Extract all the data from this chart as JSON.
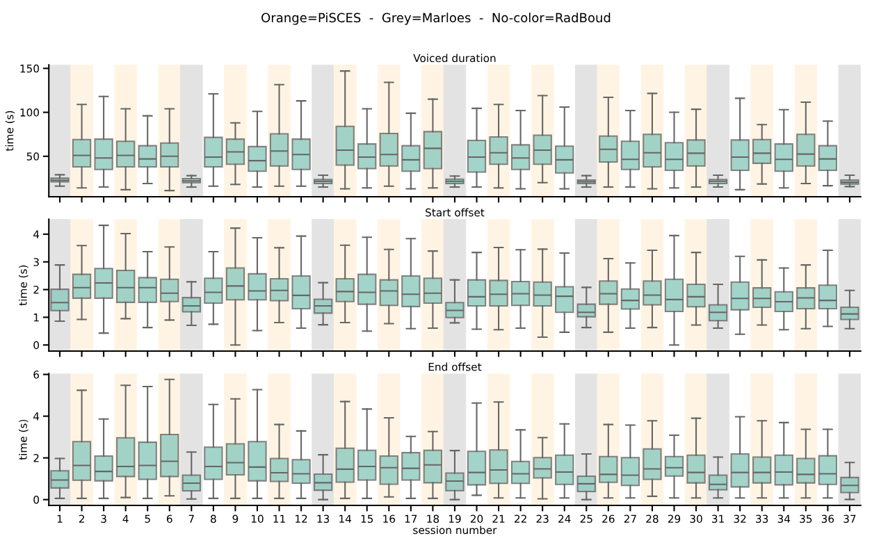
{
  "chart_data": [
    {
      "type": "box",
      "title": "Voiced duration",
      "ylabel": "time (s)",
      "annotations": [
        "Orange=PiSCES  -  Grey=Marloes  -  No-color=RadBoud"
      ],
      "categories": [
        "1",
        "2",
        "3",
        "4",
        "5",
        "6",
        "7",
        "8",
        "9",
        "10",
        "11",
        "12",
        "13",
        "14",
        "15",
        "16",
        "17",
        "18",
        "19",
        "20",
        "21",
        "22",
        "23",
        "24",
        "25",
        "26",
        "27",
        "28",
        "29",
        "30",
        "31",
        "32",
        "33",
        "34",
        "35",
        "36",
        "37"
      ],
      "color": "#8ecbbf",
      "ylim": [
        4,
        154
      ],
      "yticks": [
        50,
        100,
        150
      ],
      "tick_labels": "y",
      "grid": false,
      "boxes": [
        {
          "low": 16,
          "q1": 21,
          "median": 22.5,
          "q3": 25,
          "high": 29
        },
        {
          "low": 14,
          "q1": 38,
          "median": 51,
          "q3": 69,
          "high": 109
        },
        {
          "low": 15,
          "q1": 35,
          "median": 48,
          "q3": 69.5,
          "high": 118
        },
        {
          "low": 12,
          "q1": 38,
          "median": 51,
          "q3": 67,
          "high": 104
        },
        {
          "low": 19,
          "q1": 38,
          "median": 47,
          "q3": 62,
          "high": 96
        },
        {
          "low": 11,
          "q1": 38,
          "median": 50,
          "q3": 65,
          "high": 104
        },
        {
          "low": 15,
          "q1": 20,
          "median": 22,
          "q3": 24.5,
          "high": 28
        },
        {
          "low": 16,
          "q1": 38,
          "median": 49,
          "q3": 71.5,
          "high": 121
        },
        {
          "low": 18,
          "q1": 41,
          "median": 55,
          "q3": 69.5,
          "high": 88
        },
        {
          "low": 15,
          "q1": 33,
          "median": 45,
          "q3": 61,
          "high": 101
        },
        {
          "low": 16,
          "q1": 39,
          "median": 56,
          "q3": 75.5,
          "high": 131.5
        },
        {
          "low": 16,
          "q1": 35,
          "median": 52,
          "q3": 69.5,
          "high": 113
        },
        {
          "low": 15,
          "q1": 19,
          "median": 21.5,
          "q3": 23.5,
          "high": 28.5
        },
        {
          "low": 13,
          "q1": 40,
          "median": 57,
          "q3": 84,
          "high": 147
        },
        {
          "low": 14,
          "q1": 36,
          "median": 49,
          "q3": 64,
          "high": 104
        },
        {
          "low": 16,
          "q1": 39,
          "median": 52,
          "q3": 76,
          "high": 134
        },
        {
          "low": 13,
          "q1": 33,
          "median": 46,
          "q3": 62,
          "high": 99
        },
        {
          "low": 14,
          "q1": 36,
          "median": 59,
          "q3": 78,
          "high": 115
        },
        {
          "low": 15,
          "q1": 19,
          "median": 21.5,
          "q3": 24,
          "high": 27.5
        },
        {
          "low": 15,
          "q1": 32,
          "median": 49,
          "q3": 68,
          "high": 104.5
        },
        {
          "low": 14,
          "q1": 41,
          "median": 54,
          "q3": 72,
          "high": 109
        },
        {
          "low": 13,
          "q1": 35,
          "median": 48,
          "q3": 63,
          "high": 102
        },
        {
          "low": 20,
          "q1": 41,
          "median": 57,
          "q3": 74,
          "high": 119
        },
        {
          "low": 13,
          "q1": 31,
          "median": 46,
          "q3": 61.5,
          "high": 106
        },
        {
          "low": 15,
          "q1": 19,
          "median": 21,
          "q3": 23,
          "high": 28
        },
        {
          "low": 15,
          "q1": 43.5,
          "median": 58,
          "q3": 73,
          "high": 117
        },
        {
          "low": 15,
          "q1": 35,
          "median": 46.5,
          "q3": 67,
          "high": 102
        },
        {
          "low": 13,
          "q1": 38,
          "median": 54,
          "q3": 75,
          "high": 121.5
        },
        {
          "low": 14,
          "q1": 34,
          "median": 46.5,
          "q3": 65.5,
          "high": 100
        },
        {
          "low": 15,
          "q1": 39,
          "median": 53.5,
          "q3": 68.5,
          "high": 103.5
        },
        {
          "low": 15,
          "q1": 19,
          "median": 21.5,
          "q3": 23.5,
          "high": 28.5
        },
        {
          "low": 12,
          "q1": 34,
          "median": 49,
          "q3": 68.5,
          "high": 116
        },
        {
          "low": 18.5,
          "q1": 42,
          "median": 53.5,
          "q3": 69,
          "high": 86
        },
        {
          "low": 14,
          "q1": 33,
          "median": 46.5,
          "q3": 64,
          "high": 103
        },
        {
          "low": 19,
          "q1": 39,
          "median": 52.5,
          "q3": 75,
          "high": 111.5
        },
        {
          "low": 16.5,
          "q1": 34,
          "median": 47,
          "q3": 62,
          "high": 90
        },
        {
          "low": 15.5,
          "q1": 18.5,
          "median": 20.5,
          "q3": 23,
          "high": 28.5
        }
      ],
      "bands": [
        {
          "axis": "x",
          "from": "1",
          "to": "1",
          "color": "#e3e3e3"
        },
        {
          "axis": "x",
          "from": "2",
          "to": "2",
          "color": "#fff4e3"
        },
        {
          "axis": "x",
          "from": "4",
          "to": "4",
          "color": "#fff4e3"
        },
        {
          "axis": "x",
          "from": "6",
          "to": "6",
          "color": "#fff4e3"
        },
        {
          "axis": "x",
          "from": "7",
          "to": "7",
          "color": "#e3e3e3"
        },
        {
          "axis": "x",
          "from": "9",
          "to": "9",
          "color": "#fff4e3"
        },
        {
          "axis": "x",
          "from": "11",
          "to": "11",
          "color": "#fff4e3"
        },
        {
          "axis": "x",
          "from": "13",
          "to": "13",
          "color": "#e3e3e3"
        },
        {
          "axis": "x",
          "from": "14",
          "to": "14",
          "color": "#fff4e3"
        },
        {
          "axis": "x",
          "from": "16",
          "to": "16",
          "color": "#fff4e3"
        },
        {
          "axis": "x",
          "from": "18",
          "to": "18",
          "color": "#fff4e3"
        },
        {
          "axis": "x",
          "from": "19",
          "to": "19",
          "color": "#e3e3e3"
        },
        {
          "axis": "x",
          "from": "21",
          "to": "21",
          "color": "#fff4e3"
        },
        {
          "axis": "x",
          "from": "23",
          "to": "23",
          "color": "#fff4e3"
        },
        {
          "axis": "x",
          "from": "25",
          "to": "25",
          "color": "#e3e3e3"
        },
        {
          "axis": "x",
          "from": "26",
          "to": "26",
          "color": "#fff4e3"
        },
        {
          "axis": "x",
          "from": "28",
          "to": "28",
          "color": "#fff4e3"
        },
        {
          "axis": "x",
          "from": "30",
          "to": "30",
          "color": "#fff4e3"
        },
        {
          "axis": "x",
          "from": "31",
          "to": "31",
          "color": "#e3e3e3"
        },
        {
          "axis": "x",
          "from": "33",
          "to": "33",
          "color": "#fff4e3"
        },
        {
          "axis": "x",
          "from": "35",
          "to": "35",
          "color": "#fff4e3"
        },
        {
          "axis": "x",
          "from": "37",
          "to": "37",
          "color": "#e3e3e3"
        }
      ]
    },
    {
      "type": "box",
      "title": "Start offset",
      "ylabel": "time (s)",
      "categories": [
        "1",
        "2",
        "3",
        "4",
        "5",
        "6",
        "7",
        "8",
        "9",
        "10",
        "11",
        "12",
        "13",
        "14",
        "15",
        "16",
        "17",
        "18",
        "19",
        "20",
        "21",
        "22",
        "23",
        "24",
        "25",
        "26",
        "27",
        "28",
        "29",
        "30",
        "31",
        "32",
        "33",
        "34",
        "35",
        "36",
        "37"
      ],
      "color": "#8ecbbf",
      "ylim": [
        -0.22,
        4.54
      ],
      "yticks": [
        0,
        1,
        2,
        3,
        4
      ],
      "tick_labels": "y",
      "grid": false,
      "boxes": [
        {
          "low": 0.86,
          "q1": 1.24,
          "median": 1.53,
          "q3": 2.01,
          "high": 2.89
        },
        {
          "low": 0.92,
          "q1": 1.69,
          "median": 2.07,
          "q3": 2.55,
          "high": 3.59
        },
        {
          "low": 0.43,
          "q1": 1.69,
          "median": 2.24,
          "q3": 2.76,
          "high": 4.32
        },
        {
          "low": 0.95,
          "q1": 1.54,
          "median": 2.07,
          "q3": 2.69,
          "high": 4.02
        },
        {
          "low": 0.63,
          "q1": 1.54,
          "median": 2.07,
          "q3": 2.43,
          "high": 3.37
        },
        {
          "low": 0.9,
          "q1": 1.57,
          "median": 1.87,
          "q3": 2.37,
          "high": 3.54
        },
        {
          "low": 0.71,
          "q1": 1.2,
          "median": 1.41,
          "q3": 1.71,
          "high": 2.28
        },
        {
          "low": 0.75,
          "q1": 1.51,
          "median": 1.9,
          "q3": 2.41,
          "high": 3.37
        },
        {
          "low": 0.0,
          "q1": 1.63,
          "median": 2.13,
          "q3": 2.78,
          "high": 4.22
        },
        {
          "low": 0.52,
          "q1": 1.63,
          "median": 1.95,
          "q3": 2.57,
          "high": 3.87
        },
        {
          "low": 0.81,
          "q1": 1.6,
          "median": 1.97,
          "q3": 2.39,
          "high": 3.51
        },
        {
          "low": 0.61,
          "q1": 1.31,
          "median": 1.79,
          "q3": 2.49,
          "high": 3.93
        },
        {
          "low": 0.73,
          "q1": 1.15,
          "median": 1.41,
          "q3": 1.65,
          "high": 2.25
        },
        {
          "low": 0.81,
          "q1": 1.57,
          "median": 1.93,
          "q3": 2.39,
          "high": 3.6
        },
        {
          "low": 0.5,
          "q1": 1.47,
          "median": 1.9,
          "q3": 2.55,
          "high": 3.89
        },
        {
          "low": 0.77,
          "q1": 1.43,
          "median": 1.95,
          "q3": 2.35,
          "high": 3.45
        },
        {
          "low": 0.59,
          "q1": 1.39,
          "median": 1.83,
          "q3": 2.49,
          "high": 3.84
        },
        {
          "low": 0.61,
          "q1": 1.51,
          "median": 1.87,
          "q3": 2.41,
          "high": 3.39
        },
        {
          "low": 0.8,
          "q1": 0.99,
          "median": 1.25,
          "q3": 1.53,
          "high": 2.35
        },
        {
          "low": 0.57,
          "q1": 1.41,
          "median": 1.74,
          "q3": 2.35,
          "high": 3.34
        },
        {
          "low": 0.55,
          "q1": 1.41,
          "median": 1.83,
          "q3": 2.33,
          "high": 3.52
        },
        {
          "low": 0.61,
          "q1": 1.43,
          "median": 1.85,
          "q3": 2.29,
          "high": 3.44
        },
        {
          "low": 0.28,
          "q1": 1.41,
          "median": 1.8,
          "q3": 2.27,
          "high": 3.46
        },
        {
          "low": 0.46,
          "q1": 1.18,
          "median": 1.76,
          "q3": 2.1,
          "high": 3.32
        },
        {
          "low": 0.63,
          "q1": 1.02,
          "median": 1.18,
          "q3": 1.47,
          "high": 2.08
        },
        {
          "low": 0.46,
          "q1": 1.47,
          "median": 1.85,
          "q3": 2.31,
          "high": 3.12
        },
        {
          "low": 0.61,
          "q1": 1.3,
          "median": 1.61,
          "q3": 2.02,
          "high": 2.96
        },
        {
          "low": 0.63,
          "q1": 1.45,
          "median": 1.8,
          "q3": 2.31,
          "high": 3.42
        },
        {
          "low": 0.0,
          "q1": 1.21,
          "median": 1.64,
          "q3": 2.37,
          "high": 3.95
        },
        {
          "low": 0.72,
          "q1": 1.38,
          "median": 1.74,
          "q3": 2.19,
          "high": 3.34
        },
        {
          "low": 0.61,
          "q1": 0.88,
          "median": 1.18,
          "q3": 1.45,
          "high": 2.19
        },
        {
          "low": 0.39,
          "q1": 1.27,
          "median": 1.68,
          "q3": 2.27,
          "high": 3.2
        },
        {
          "low": 0.72,
          "q1": 1.36,
          "median": 1.68,
          "q3": 2.06,
          "high": 3.07
        },
        {
          "low": 0.55,
          "q1": 1.21,
          "median": 1.56,
          "q3": 1.92,
          "high": 2.78
        },
        {
          "low": 0.59,
          "q1": 1.31,
          "median": 1.7,
          "q3": 2.06,
          "high": 2.89
        },
        {
          "low": 0.67,
          "q1": 1.31,
          "median": 1.61,
          "q3": 2.16,
          "high": 3.42
        },
        {
          "low": 0.59,
          "q1": 0.92,
          "median": 1.12,
          "q3": 1.36,
          "high": 1.97
        }
      ],
      "bands": [
        {
          "axis": "x",
          "from": "1",
          "to": "1",
          "color": "#e3e3e3"
        },
        {
          "axis": "x",
          "from": "2",
          "to": "2",
          "color": "#fff4e3"
        },
        {
          "axis": "x",
          "from": "4",
          "to": "4",
          "color": "#fff4e3"
        },
        {
          "axis": "x",
          "from": "6",
          "to": "6",
          "color": "#fff4e3"
        },
        {
          "axis": "x",
          "from": "7",
          "to": "7",
          "color": "#e3e3e3"
        },
        {
          "axis": "x",
          "from": "9",
          "to": "9",
          "color": "#fff4e3"
        },
        {
          "axis": "x",
          "from": "11",
          "to": "11",
          "color": "#fff4e3"
        },
        {
          "axis": "x",
          "from": "13",
          "to": "13",
          "color": "#e3e3e3"
        },
        {
          "axis": "x",
          "from": "14",
          "to": "14",
          "color": "#fff4e3"
        },
        {
          "axis": "x",
          "from": "16",
          "to": "16",
          "color": "#fff4e3"
        },
        {
          "axis": "x",
          "from": "18",
          "to": "18",
          "color": "#fff4e3"
        },
        {
          "axis": "x",
          "from": "19",
          "to": "19",
          "color": "#e3e3e3"
        },
        {
          "axis": "x",
          "from": "21",
          "to": "21",
          "color": "#fff4e3"
        },
        {
          "axis": "x",
          "from": "23",
          "to": "23",
          "color": "#fff4e3"
        },
        {
          "axis": "x",
          "from": "25",
          "to": "25",
          "color": "#e3e3e3"
        },
        {
          "axis": "x",
          "from": "26",
          "to": "26",
          "color": "#fff4e3"
        },
        {
          "axis": "x",
          "from": "28",
          "to": "28",
          "color": "#fff4e3"
        },
        {
          "axis": "x",
          "from": "30",
          "to": "30",
          "color": "#fff4e3"
        },
        {
          "axis": "x",
          "from": "31",
          "to": "31",
          "color": "#e3e3e3"
        },
        {
          "axis": "x",
          "from": "33",
          "to": "33",
          "color": "#fff4e3"
        },
        {
          "axis": "x",
          "from": "35",
          "to": "35",
          "color": "#fff4e3"
        },
        {
          "axis": "x",
          "from": "37",
          "to": "37",
          "color": "#e3e3e3"
        }
      ]
    },
    {
      "type": "box",
      "title": "End offset",
      "ylabel": "time (s)",
      "xlabel": "session number",
      "categories": [
        "1",
        "2",
        "3",
        "4",
        "5",
        "6",
        "7",
        "8",
        "9",
        "10",
        "11",
        "12",
        "13",
        "14",
        "15",
        "16",
        "17",
        "18",
        "19",
        "20",
        "21",
        "22",
        "23",
        "24",
        "25",
        "26",
        "27",
        "28",
        "29",
        "30",
        "31",
        "32",
        "33",
        "34",
        "35",
        "36",
        "37"
      ],
      "color": "#8ecbbf",
      "ylim": [
        -0.28,
        6.04
      ],
      "yticks": [
        0,
        2,
        4,
        6
      ],
      "grid": false,
      "boxes": [
        {
          "low": 0.06,
          "q1": 0.56,
          "median": 0.94,
          "q3": 1.38,
          "high": 1.97
        },
        {
          "low": 0.06,
          "q1": 0.93,
          "median": 1.64,
          "q3": 2.78,
          "high": 5.24
        },
        {
          "low": 0.06,
          "q1": 0.9,
          "median": 1.35,
          "q3": 2.09,
          "high": 3.86
        },
        {
          "low": 0.1,
          "q1": 1.11,
          "median": 1.59,
          "q3": 2.96,
          "high": 5.48
        },
        {
          "low": 0.06,
          "q1": 0.97,
          "median": 1.64,
          "q3": 2.75,
          "high": 5.42
        },
        {
          "low": 0.18,
          "q1": 1.11,
          "median": 1.84,
          "q3": 3.12,
          "high": 5.76
        },
        {
          "low": 0.03,
          "q1": 0.42,
          "median": 0.79,
          "q3": 1.17,
          "high": 2.28
        },
        {
          "low": 0.06,
          "q1": 0.97,
          "median": 1.59,
          "q3": 2.51,
          "high": 4.56
        },
        {
          "low": 0.06,
          "q1": 1.19,
          "median": 1.77,
          "q3": 2.67,
          "high": 4.83
        },
        {
          "low": 0.06,
          "q1": 0.9,
          "median": 1.56,
          "q3": 2.78,
          "high": 5.27
        },
        {
          "low": 0.06,
          "q1": 0.87,
          "median": 1.29,
          "q3": 1.97,
          "high": 3.6
        },
        {
          "low": 0.06,
          "q1": 0.79,
          "median": 1.24,
          "q3": 1.91,
          "high": 3.29
        },
        {
          "low": 0.0,
          "q1": 0.45,
          "median": 0.81,
          "q3": 1.22,
          "high": 2.15
        },
        {
          "low": 0.06,
          "q1": 0.84,
          "median": 1.46,
          "q3": 2.46,
          "high": 4.7
        },
        {
          "low": 0.06,
          "q1": 0.94,
          "median": 1.59,
          "q3": 2.36,
          "high": 4.34
        },
        {
          "low": 0.13,
          "q1": 0.74,
          "median": 1.53,
          "q3": 2.09,
          "high": 3.92
        },
        {
          "low": 0.06,
          "q1": 0.94,
          "median": 1.5,
          "q3": 2.25,
          "high": 3.03
        },
        {
          "low": 0.06,
          "q1": 0.81,
          "median": 1.66,
          "q3": 2.36,
          "high": 3.26
        },
        {
          "low": 0.0,
          "q1": 0.43,
          "median": 0.89,
          "q3": 1.27,
          "high": 2.35
        },
        {
          "low": 0.21,
          "q1": 0.71,
          "median": 1.3,
          "q3": 2.31,
          "high": 4.63
        },
        {
          "low": 0.08,
          "q1": 0.78,
          "median": 1.42,
          "q3": 2.38,
          "high": 4.68
        },
        {
          "low": 0.08,
          "q1": 0.78,
          "median": 1.24,
          "q3": 1.83,
          "high": 3.34
        },
        {
          "low": 0.04,
          "q1": 1.04,
          "median": 1.47,
          "q3": 2.01,
          "high": 2.97
        },
        {
          "low": 0.08,
          "q1": 0.73,
          "median": 1.32,
          "q3": 2.13,
          "high": 3.63
        },
        {
          "low": 0.0,
          "q1": 0.39,
          "median": 0.76,
          "q3": 1.12,
          "high": 2.19
        },
        {
          "low": 0.08,
          "q1": 0.83,
          "median": 1.21,
          "q3": 2.06,
          "high": 3.6
        },
        {
          "low": 0.08,
          "q1": 0.68,
          "median": 1.17,
          "q3": 2.01,
          "high": 3.57
        },
        {
          "low": 0.16,
          "q1": 0.97,
          "median": 1.47,
          "q3": 2.43,
          "high": 3.78
        },
        {
          "low": 0.08,
          "q1": 1.13,
          "median": 1.53,
          "q3": 2.06,
          "high": 3.09
        },
        {
          "low": 0.08,
          "q1": 0.8,
          "median": 1.3,
          "q3": 2.13,
          "high": 3.9
        },
        {
          "low": 0.08,
          "q1": 0.47,
          "median": 0.73,
          "q3": 1.17,
          "high": 2.04
        },
        {
          "low": 0.08,
          "q1": 0.61,
          "median": 1.3,
          "q3": 2.19,
          "high": 3.97
        },
        {
          "low": 0.08,
          "q1": 0.8,
          "median": 1.3,
          "q3": 2.04,
          "high": 3.78
        },
        {
          "low": 0.08,
          "q1": 0.71,
          "median": 1.32,
          "q3": 2.13,
          "high": 3.69
        },
        {
          "low": 0.08,
          "q1": 0.8,
          "median": 1.21,
          "q3": 1.97,
          "high": 3.37
        },
        {
          "low": 0.08,
          "q1": 0.73,
          "median": 1.24,
          "q3": 2.1,
          "high": 3.37
        },
        {
          "low": 0.01,
          "q1": 0.34,
          "median": 0.68,
          "q3": 1.06,
          "high": 1.78
        }
      ],
      "bands": [
        {
          "axis": "x",
          "from": "1",
          "to": "1",
          "color": "#e3e3e3"
        },
        {
          "axis": "x",
          "from": "2",
          "to": "2",
          "color": "#fff4e3"
        },
        {
          "axis": "x",
          "from": "4",
          "to": "4",
          "color": "#fff4e3"
        },
        {
          "axis": "x",
          "from": "6",
          "to": "6",
          "color": "#fff4e3"
        },
        {
          "axis": "x",
          "from": "7",
          "to": "7",
          "color": "#e3e3e3"
        },
        {
          "axis": "x",
          "from": "9",
          "to": "9",
          "color": "#fff4e3"
        },
        {
          "axis": "x",
          "from": "11",
          "to": "11",
          "color": "#fff4e3"
        },
        {
          "axis": "x",
          "from": "13",
          "to": "13",
          "color": "#e3e3e3"
        },
        {
          "axis": "x",
          "from": "14",
          "to": "14",
          "color": "#fff4e3"
        },
        {
          "axis": "x",
          "from": "16",
          "to": "16",
          "color": "#fff4e3"
        },
        {
          "axis": "x",
          "from": "18",
          "to": "18",
          "color": "#fff4e3"
        },
        {
          "axis": "x",
          "from": "19",
          "to": "19",
          "color": "#e3e3e3"
        },
        {
          "axis": "x",
          "from": "21",
          "to": "21",
          "color": "#fff4e3"
        },
        {
          "axis": "x",
          "from": "23",
          "to": "23",
          "color": "#fff4e3"
        },
        {
          "axis": "x",
          "from": "25",
          "to": "25",
          "color": "#e3e3e3"
        },
        {
          "axis": "x",
          "from": "26",
          "to": "26",
          "color": "#fff4e3"
        },
        {
          "axis": "x",
          "from": "28",
          "to": "28",
          "color": "#fff4e3"
        },
        {
          "axis": "x",
          "from": "30",
          "to": "30",
          "color": "#fff4e3"
        },
        {
          "axis": "x",
          "from": "31",
          "to": "31",
          "color": "#e3e3e3"
        },
        {
          "axis": "x",
          "from": "33",
          "to": "33",
          "color": "#fff4e3"
        },
        {
          "axis": "x",
          "from": "35",
          "to": "35",
          "color": "#fff4e3"
        },
        {
          "axis": "x",
          "from": "37",
          "to": "37",
          "color": "#e3e3e3"
        }
      ]
    }
  ]
}
